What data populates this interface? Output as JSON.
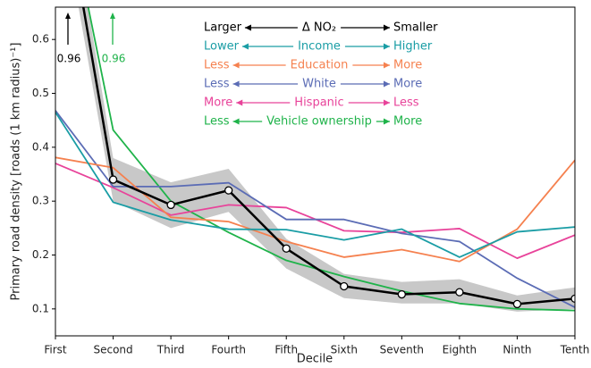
{
  "chart_data": {
    "type": "line",
    "xlabel": "Decile",
    "ylabel": "Primary road density [roads (1 km radius)⁻¹]",
    "categories": [
      "First",
      "Second",
      "Third",
      "Fourth",
      "Fifth",
      "Sixth",
      "Seventh",
      "Eighth",
      "Ninth",
      "Tenth"
    ],
    "ylim": [
      0.05,
      0.66
    ],
    "yticks": [
      0.1,
      0.2,
      0.3,
      0.4,
      0.5,
      0.6
    ],
    "band": {
      "color": "#c8c8c8",
      "lower": [
        0.9,
        0.3,
        0.25,
        0.28,
        0.175,
        0.12,
        0.11,
        0.11,
        0.095,
        0.1
      ],
      "upper": [
        1.02,
        0.38,
        0.335,
        0.36,
        0.23,
        0.165,
        0.15,
        0.155,
        0.125,
        0.14
      ]
    },
    "series": [
      {
        "name": "Δ NO₂",
        "left": "Larger",
        "right": "Smaller",
        "color": "#000000",
        "markers": true,
        "values": [
          0.96,
          0.34,
          0.293,
          0.32,
          0.212,
          0.142,
          0.127,
          0.131,
          0.109,
          0.119
        ]
      },
      {
        "name": "Income",
        "left": "Lower",
        "right": "Higher",
        "color": "#1a9da5",
        "values": [
          0.465,
          0.298,
          0.265,
          0.248,
          0.247,
          0.228,
          0.248,
          0.196,
          0.243,
          0.252
        ]
      },
      {
        "name": "Education",
        "left": "Less",
        "right": "More",
        "color": "#f5814f",
        "values": [
          0.381,
          0.362,
          0.27,
          0.262,
          0.225,
          0.196,
          0.21,
          0.188,
          0.248,
          0.376
        ]
      },
      {
        "name": "White",
        "left": "Less",
        "right": "More",
        "color": "#5b6cb5",
        "values": [
          0.468,
          0.327,
          0.327,
          0.334,
          0.266,
          0.266,
          0.24,
          0.225,
          0.157,
          0.103
        ]
      },
      {
        "name": "Hispanic",
        "left": "More",
        "right": "Less",
        "color": "#e8439a",
        "values": [
          0.37,
          0.325,
          0.274,
          0.293,
          0.288,
          0.245,
          0.242,
          0.249,
          0.194,
          0.237
        ]
      },
      {
        "name": "Vehicle ownership",
        "left": "Less",
        "right": "More",
        "color": "#1fb34a",
        "values": [
          0.96,
          0.432,
          0.3,
          0.242,
          0.19,
          0.16,
          0.133,
          0.11,
          0.1,
          0.097
        ]
      }
    ],
    "annotations": [
      {
        "text": "0.96",
        "color": "#000000"
      },
      {
        "text": "0.96",
        "color": "#1fb34a"
      }
    ]
  }
}
